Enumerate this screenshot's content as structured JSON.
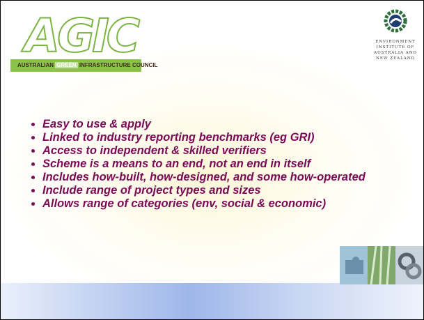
{
  "logo_left": {
    "letters": "AGIC",
    "bar": [
      "AUSTRALIAN",
      "GREEN",
      "INFRASTRUCTURE",
      "COUNCIL"
    ]
  },
  "logo_right": {
    "lines": [
      "ENVIRONMENT",
      "INSTITUTE OF",
      "AUSTRALIA AND",
      "NEW ZEALAND"
    ]
  },
  "bullets": [
    "Easy to use & apply",
    "Linked to industry reporting benchmarks (eg GRI)",
    "Access to independent & skilled verifiers",
    "Scheme is a means to an end, not an end in itself",
    "Includes how-built, how-designed, and some how-operated",
    "Include range of project types and sizes",
    "Allows range of categories (env, social & economic)"
  ]
}
